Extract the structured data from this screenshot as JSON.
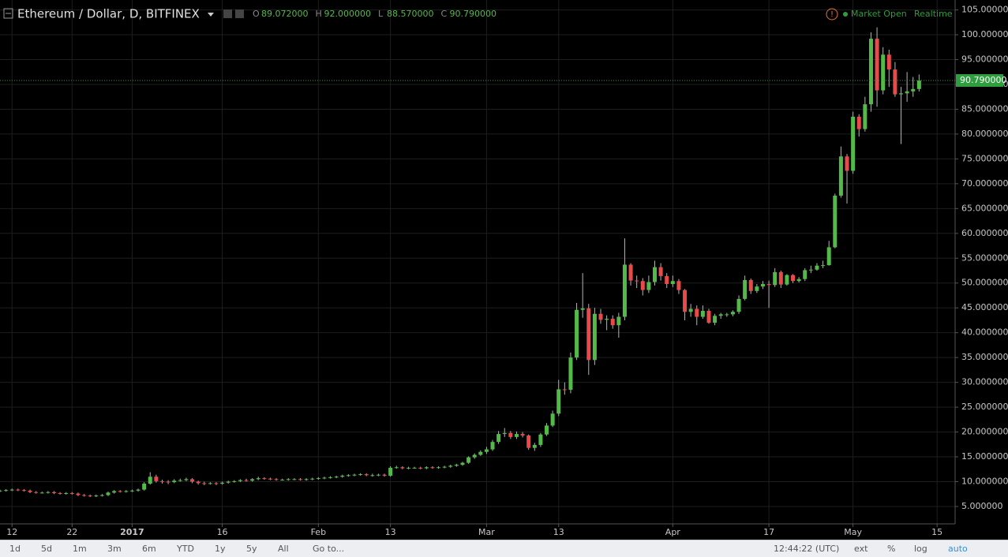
{
  "chart_data": {
    "type": "candlestick",
    "title": "Ethereum / Dollar, D, BITFINEX",
    "ohlc_header": [
      {
        "name": "O",
        "value": {
          "value": 89.072,
          "label": "89.072000"
        }
      },
      {
        "name": "H",
        "value": {
          "value": 92,
          "label": "92.000000"
        }
      },
      {
        "name": "L",
        "value": {
          "value": 88.57,
          "label": "88.570000"
        }
      },
      {
        "name": "C",
        "value": {
          "value": 90.79,
          "label": "90.790000"
        }
      }
    ],
    "status": [
      "Market Open",
      "Realtime"
    ],
    "up_color": "#53b948",
    "down_color": "#e84a4a",
    "wick_color": "#b4b4b4",
    "grid": true,
    "last_price": {
      "value": 90.79,
      "label": "90.790000",
      "color": "#2e9e3f"
    },
    "x": [
      "2016-12-10",
      "2016-12-11",
      "2016-12-12",
      "2016-12-13",
      "2016-12-14",
      "2016-12-15",
      "2016-12-16",
      "2016-12-17",
      "2016-12-18",
      "2016-12-19",
      "2016-12-20",
      "2016-12-21",
      "2016-12-22",
      "2016-12-23",
      "2016-12-24",
      "2016-12-25",
      "2016-12-26",
      "2016-12-27",
      "2016-12-28",
      "2016-12-29",
      "2016-12-30",
      "2016-12-31",
      "2017-01-01",
      "2017-01-02",
      "2017-01-03",
      "2017-01-04",
      "2017-01-05",
      "2017-01-06",
      "2017-01-07",
      "2017-01-08",
      "2017-01-09",
      "2017-01-10",
      "2017-01-11",
      "2017-01-12",
      "2017-01-13",
      "2017-01-14",
      "2017-01-15",
      "2017-01-16",
      "2017-01-17",
      "2017-01-18",
      "2017-01-19",
      "2017-01-20",
      "2017-01-21",
      "2017-01-22",
      "2017-01-23",
      "2017-01-24",
      "2017-01-25",
      "2017-01-26",
      "2017-01-27",
      "2017-01-28",
      "2017-01-29",
      "2017-01-30",
      "2017-01-31",
      "2017-02-01",
      "2017-02-02",
      "2017-02-03",
      "2017-02-04",
      "2017-02-05",
      "2017-02-06",
      "2017-02-07",
      "2017-02-08",
      "2017-02-09",
      "2017-02-10",
      "2017-02-11",
      "2017-02-12",
      "2017-02-13",
      "2017-02-14",
      "2017-02-15",
      "2017-02-16",
      "2017-02-17",
      "2017-02-18",
      "2017-02-19",
      "2017-02-20",
      "2017-02-21",
      "2017-02-22",
      "2017-02-23",
      "2017-02-24",
      "2017-02-25",
      "2017-02-26",
      "2017-02-27",
      "2017-02-28",
      "2017-03-01",
      "2017-03-02",
      "2017-03-03",
      "2017-03-04",
      "2017-03-05",
      "2017-03-06",
      "2017-03-07",
      "2017-03-08",
      "2017-03-09",
      "2017-03-10",
      "2017-03-11",
      "2017-03-12",
      "2017-03-13",
      "2017-03-14",
      "2017-03-15",
      "2017-03-16",
      "2017-03-17",
      "2017-03-18",
      "2017-03-19",
      "2017-03-20",
      "2017-03-21",
      "2017-03-22",
      "2017-03-23",
      "2017-03-24",
      "2017-03-25",
      "2017-03-26",
      "2017-03-27",
      "2017-03-28",
      "2017-03-29",
      "2017-03-30",
      "2017-03-31",
      "2017-04-01",
      "2017-04-02",
      "2017-04-03",
      "2017-04-04",
      "2017-04-05",
      "2017-04-06",
      "2017-04-07",
      "2017-04-08",
      "2017-04-09",
      "2017-04-10",
      "2017-04-11",
      "2017-04-12",
      "2017-04-13",
      "2017-04-14",
      "2017-04-15",
      "2017-04-16",
      "2017-04-17",
      "2017-04-18",
      "2017-04-19",
      "2017-04-20",
      "2017-04-21",
      "2017-04-22",
      "2017-04-23",
      "2017-04-24",
      "2017-04-25",
      "2017-04-26",
      "2017-04-27",
      "2017-04-28",
      "2017-04-29",
      "2017-04-30",
      "2017-05-01",
      "2017-05-02",
      "2017-05-03",
      "2017-05-04",
      "2017-05-05",
      "2017-05-06",
      "2017-05-07",
      "2017-05-08",
      "2017-05-09",
      "2017-05-10",
      "2017-05-11",
      "2017-05-12"
    ],
    "open": [
      8.1,
      8.2,
      8.3,
      8.4,
      8.3,
      8.2,
      7.9,
      7.8,
      7.8,
      7.9,
      7.7,
      7.6,
      7.7,
      7.6,
      7.3,
      7.2,
      7.1,
      7.2,
      7.3,
      7.8,
      8.1,
      8.0,
      8.1,
      8.2,
      8.4,
      9.6,
      11.0,
      10.1,
      10.0,
      9.9,
      10.2,
      10.3,
      10.5,
      10.0,
      9.7,
      9.6,
      9.7,
      9.6,
      9.8,
      10.0,
      10.1,
      10.3,
      10.2,
      10.5,
      10.7,
      10.6,
      10.5,
      10.4,
      10.4,
      10.5,
      10.5,
      10.4,
      10.5,
      10.6,
      10.7,
      10.8,
      10.9,
      11.0,
      11.2,
      11.3,
      11.4,
      11.5,
      11.3,
      11.3,
      11.4,
      11.2,
      12.8,
      12.9,
      12.7,
      12.8,
      12.8,
      12.7,
      12.9,
      12.8,
      12.9,
      13.0,
      13.2,
      13.4,
      13.8,
      14.9,
      15.4,
      16.0,
      16.5,
      18.0,
      19.6,
      19.8,
      19.0,
      19.6,
      19.3,
      16.8,
      17.4,
      19.5,
      21.3,
      23.7,
      28.6,
      28.5,
      35.0,
      44.6,
      44.9,
      34.5,
      43.8,
      42.6,
      42.8,
      41.5,
      43.2,
      53.7,
      50.5,
      50.4,
      48.6,
      50.2,
      53.2,
      51.4,
      49.8,
      50.4,
      48.6,
      44.2,
      44.8,
      43.2,
      44.4,
      42.0,
      43.4,
      43.7,
      43.7,
      44.2,
      46.8,
      50.6,
      48.4,
      49.3,
      49.8,
      49.6,
      52.2,
      49.7,
      51.6,
      50.4,
      50.8,
      52.6,
      52.7,
      53.5,
      53.6,
      57.2,
      67.6,
      75.5,
      72.6,
      83.5,
      81.0,
      86.0,
      99.2,
      88.8,
      96.0,
      93.0,
      88.0,
      88.2,
      88.6,
      89.072
    ],
    "high": [
      8.4,
      8.5,
      8.6,
      8.6,
      8.5,
      8.4,
      8.1,
      8.0,
      8.1,
      8.1,
      7.9,
      7.9,
      7.9,
      7.8,
      7.5,
      7.4,
      7.4,
      7.5,
      8.0,
      8.3,
      8.3,
      8.3,
      8.4,
      8.6,
      9.9,
      11.9,
      11.4,
      10.4,
      10.3,
      10.5,
      10.6,
      10.8,
      10.7,
      10.2,
      10.0,
      9.9,
      9.9,
      10.0,
      10.2,
      10.3,
      10.5,
      10.6,
      10.7,
      11.0,
      10.9,
      10.8,
      10.7,
      10.6,
      10.7,
      10.7,
      10.7,
      10.7,
      10.8,
      10.9,
      11.0,
      11.1,
      11.2,
      11.4,
      11.5,
      11.6,
      11.7,
      11.7,
      11.6,
      11.6,
      11.6,
      13.1,
      13.2,
      13.1,
      13.0,
      13.0,
      13.0,
      13.1,
      13.1,
      13.1,
      13.2,
      13.4,
      13.6,
      14.0,
      15.1,
      15.7,
      16.3,
      17.0,
      18.4,
      20.2,
      20.8,
      20.2,
      20.1,
      20.0,
      19.5,
      17.8,
      19.8,
      21.8,
      24.3,
      30.5,
      30.0,
      36.0,
      46.0,
      52.0,
      45.8,
      45.0,
      44.8,
      43.5,
      43.5,
      44.0,
      59.0,
      54.0,
      51.5,
      51.0,
      51.5,
      54.5,
      54.0,
      52.0,
      51.5,
      50.8,
      48.8,
      45.8,
      45.5,
      45.5,
      44.8,
      43.8,
      44.0,
      44.0,
      44.5,
      47.5,
      51.5,
      50.9,
      49.8,
      50.4,
      50.5,
      53.0,
      52.5,
      51.8,
      51.8,
      51.2,
      53.0,
      53.5,
      54.0,
      54.5,
      58.5,
      68.0,
      77.5,
      76.0,
      84.5,
      84.0,
      87.5,
      100.5,
      101.5,
      97.5,
      97.0,
      94.5,
      89.5,
      92.5,
      91.5,
      92.0
    ],
    "low": [
      7.9,
      8.0,
      8.1,
      8.1,
      8.0,
      7.7,
      7.6,
      7.6,
      7.6,
      7.5,
      7.4,
      7.4,
      7.4,
      7.1,
      7.0,
      6.9,
      6.9,
      7.0,
      7.1,
      7.6,
      7.8,
      7.8,
      7.9,
      8.0,
      8.2,
      9.4,
      9.8,
      9.6,
      9.5,
      9.7,
      10.0,
      10.1,
      9.7,
      9.4,
      9.3,
      9.4,
      9.3,
      9.4,
      9.6,
      9.8,
      9.9,
      10.0,
      10.0,
      10.3,
      10.4,
      10.3,
      10.2,
      10.2,
      10.2,
      10.3,
      10.2,
      10.2,
      10.3,
      10.4,
      10.5,
      10.6,
      10.7,
      10.8,
      11.0,
      11.1,
      11.2,
      11.1,
      11.0,
      11.1,
      11.0,
      11.0,
      12.6,
      12.5,
      12.5,
      12.6,
      12.5,
      12.5,
      12.6,
      12.6,
      12.7,
      12.8,
      13.0,
      13.2,
      13.6,
      14.6,
      15.2,
      15.6,
      16.2,
      17.6,
      19.0,
      18.6,
      18.6,
      18.9,
      16.4,
      16.2,
      17.0,
      19.2,
      21.0,
      23.2,
      27.5,
      27.8,
      34.5,
      43.0,
      31.5,
      33.5,
      41.8,
      40.5,
      40.8,
      39.0,
      42.5,
      49.5,
      49.0,
      47.5,
      48.0,
      49.5,
      50.5,
      49.0,
      49.2,
      47.8,
      42.5,
      43.2,
      41.5,
      42.8,
      41.8,
      41.5,
      42.8,
      43.2,
      43.3,
      43.8,
      46.5,
      47.8,
      48.0,
      48.8,
      45.0,
      49.2,
      49.0,
      49.5,
      50.0,
      50.1,
      50.4,
      52.0,
      52.5,
      53.0,
      53.5,
      57.0,
      67.2,
      66.0,
      72.0,
      79.5,
      80.5,
      84.5,
      85.5,
      88.0,
      89.5,
      87.5,
      78.0,
      86.5,
      87.5,
      88.57
    ],
    "close": [
      8.2,
      8.3,
      8.4,
      8.3,
      8.2,
      7.9,
      7.8,
      7.8,
      7.9,
      7.7,
      7.6,
      7.7,
      7.6,
      7.3,
      7.2,
      7.1,
      7.2,
      7.3,
      7.8,
      8.1,
      8.0,
      8.1,
      8.2,
      8.4,
      9.6,
      11.0,
      10.1,
      10.0,
      9.9,
      10.2,
      10.3,
      10.5,
      10.0,
      9.7,
      9.6,
      9.7,
      9.6,
      9.8,
      10.0,
      10.1,
      10.3,
      10.2,
      10.5,
      10.7,
      10.6,
      10.5,
      10.4,
      10.4,
      10.5,
      10.5,
      10.4,
      10.5,
      10.6,
      10.7,
      10.8,
      10.9,
      11.0,
      11.2,
      11.3,
      11.4,
      11.5,
      11.3,
      11.3,
      11.4,
      11.2,
      12.8,
      12.9,
      12.7,
      12.8,
      12.8,
      12.7,
      12.9,
      12.8,
      12.9,
      13.0,
      13.2,
      13.4,
      13.8,
      14.9,
      15.4,
      16.0,
      16.5,
      18.0,
      19.6,
      19.8,
      19.0,
      19.6,
      19.3,
      16.8,
      17.4,
      19.5,
      21.3,
      23.7,
      28.6,
      28.5,
      35.0,
      44.6,
      44.9,
      34.5,
      43.8,
      42.6,
      42.8,
      41.5,
      43.2,
      53.7,
      50.5,
      50.4,
      48.6,
      50.2,
      53.2,
      51.4,
      49.8,
      50.4,
      48.6,
      44.2,
      44.8,
      43.2,
      44.4,
      42.0,
      43.4,
      43.7,
      43.7,
      44.2,
      46.8,
      50.6,
      48.4,
      49.3,
      49.8,
      49.6,
      52.2,
      49.7,
      51.6,
      50.4,
      50.8,
      52.6,
      52.7,
      53.5,
      53.6,
      57.2,
      67.6,
      75.5,
      72.6,
      83.5,
      81.0,
      86.0,
      99.2,
      88.8,
      96.0,
      93.0,
      88.0,
      88.2,
      88.6,
      89.072,
      90.79
    ],
    "xlim": [
      "2016-12-10",
      "2017-05-18"
    ],
    "xticks": [
      {
        "value": "2016-12-12",
        "label": "12"
      },
      {
        "value": "2016-12-22",
        "label": "22"
      },
      {
        "value": "2017-01-01",
        "label": "2017"
      },
      {
        "value": "2017-01-16",
        "label": "16"
      },
      {
        "value": "2017-02-01",
        "label": "Feb"
      },
      {
        "value": "2017-02-13",
        "label": "13"
      },
      {
        "value": "2017-03-01",
        "label": "Mar"
      },
      {
        "value": "2017-03-13",
        "label": "13"
      },
      {
        "value": "2017-04-01",
        "label": "Apr"
      },
      {
        "value": "2017-04-17",
        "label": "17"
      },
      {
        "value": "2017-05-01",
        "label": "May"
      },
      {
        "value": "2017-05-15",
        "label": "15"
      }
    ],
    "ylim": [
      1.5,
      107
    ],
    "yticks": [
      {
        "value": 5,
        "label": "5.000000"
      },
      {
        "value": 10,
        "label": "10.000000"
      },
      {
        "value": 15,
        "label": "15.000000"
      },
      {
        "value": 20,
        "label": "20.000000"
      },
      {
        "value": 25,
        "label": "25.000000"
      },
      {
        "value": 30,
        "label": "30.000000"
      },
      {
        "value": 35,
        "label": "35.000000"
      },
      {
        "value": 40,
        "label": "40.000000"
      },
      {
        "value": 45,
        "label": "45.000000"
      },
      {
        "value": 50,
        "label": "50.000000"
      },
      {
        "value": 55,
        "label": "55.000000"
      },
      {
        "value": 60,
        "label": "60.000000"
      },
      {
        "value": 65,
        "label": "65.000000"
      },
      {
        "value": 70,
        "label": "70.000000"
      },
      {
        "value": 75,
        "label": "75.000000"
      },
      {
        "value": 80,
        "label": "80.000000"
      },
      {
        "value": 85,
        "label": "85.000000"
      },
      {
        "value": 90,
        "label": "90.000000"
      },
      {
        "value": 95,
        "label": "95.000000"
      },
      {
        "value": 100,
        "label": "100.000000"
      },
      {
        "value": 105,
        "label": "105.000000"
      }
    ]
  },
  "toolbar": {
    "ranges": [
      "1d",
      "5d",
      "1m",
      "3m",
      "6m",
      "YTD",
      "1y",
      "5y",
      "All"
    ],
    "goto": "Go to...",
    "clock": "12:44:22 (UTC)",
    "options": [
      "ext",
      "%",
      "log",
      "auto"
    ]
  }
}
